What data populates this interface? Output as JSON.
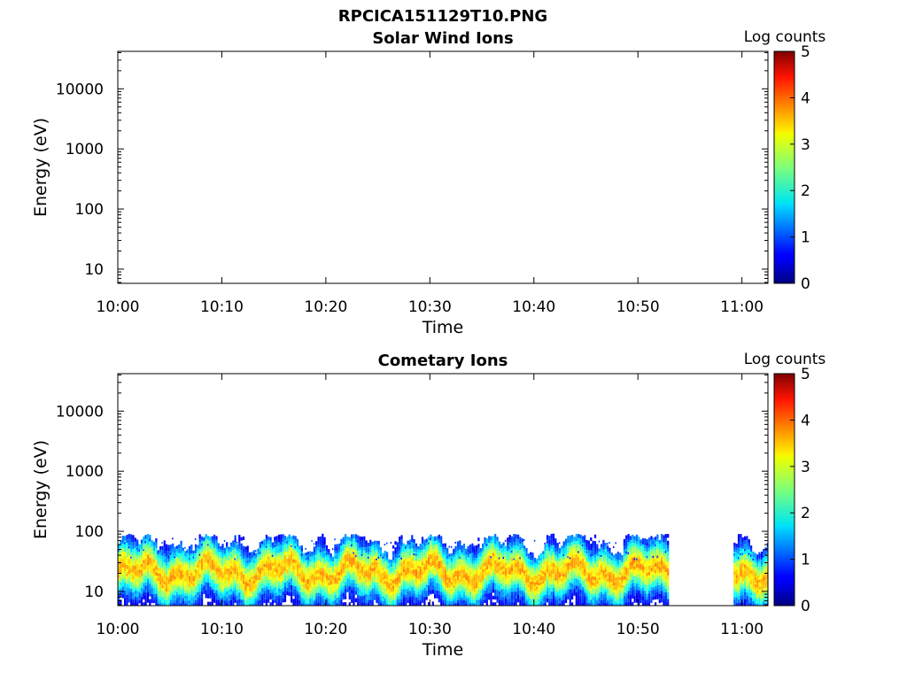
{
  "figure_title": "RPCICA151129T10.PNG",
  "chart_data": [
    {
      "type": "heatmap",
      "title": "Solar Wind Ions",
      "xlabel": "Time",
      "ylabel": "Energy (eV)",
      "x_ticks": [
        "10:00",
        "10:10",
        "10:20",
        "10:30",
        "10:40",
        "10:50",
        "11:00"
      ],
      "x_range_minutes": [
        0,
        62.5
      ],
      "y_scale": "log",
      "y_ticks": [
        "10",
        "100",
        "1000",
        "10000"
      ],
      "y_range": [
        5.8,
        42000
      ],
      "colorbar": {
        "label": "Log counts",
        "ticks": [
          "0",
          "1",
          "2",
          "3",
          "4",
          "5"
        ],
        "range": [
          0,
          5
        ],
        "colormap": "jet"
      },
      "data": []
    },
    {
      "type": "heatmap",
      "title": "Cometary Ions",
      "xlabel": "Time",
      "ylabel": "Energy (eV)",
      "x_ticks": [
        "10:00",
        "10:10",
        "10:20",
        "10:30",
        "10:40",
        "10:50",
        "11:00"
      ],
      "x_range_minutes": [
        0,
        62.5
      ],
      "y_scale": "log",
      "y_ticks": [
        "10",
        "100",
        "1000",
        "10000"
      ],
      "y_range": [
        5.8,
        42000
      ],
      "colorbar": {
        "label": "Log counts",
        "ticks": [
          "0",
          "1",
          "2",
          "3",
          "4",
          "5"
        ],
        "range": [
          0,
          5
        ],
        "colormap": "jet"
      },
      "data_segments": [
        {
          "start_minute": 0,
          "end_minute": 53.0
        },
        {
          "start_minute": 59.2,
          "end_minute": 62.5
        }
      ],
      "peak_energy_eV_approx": 20,
      "energy_extent_eV_approx": [
        5.8,
        80
      ],
      "peak_log_counts_approx": 3.2
    }
  ]
}
